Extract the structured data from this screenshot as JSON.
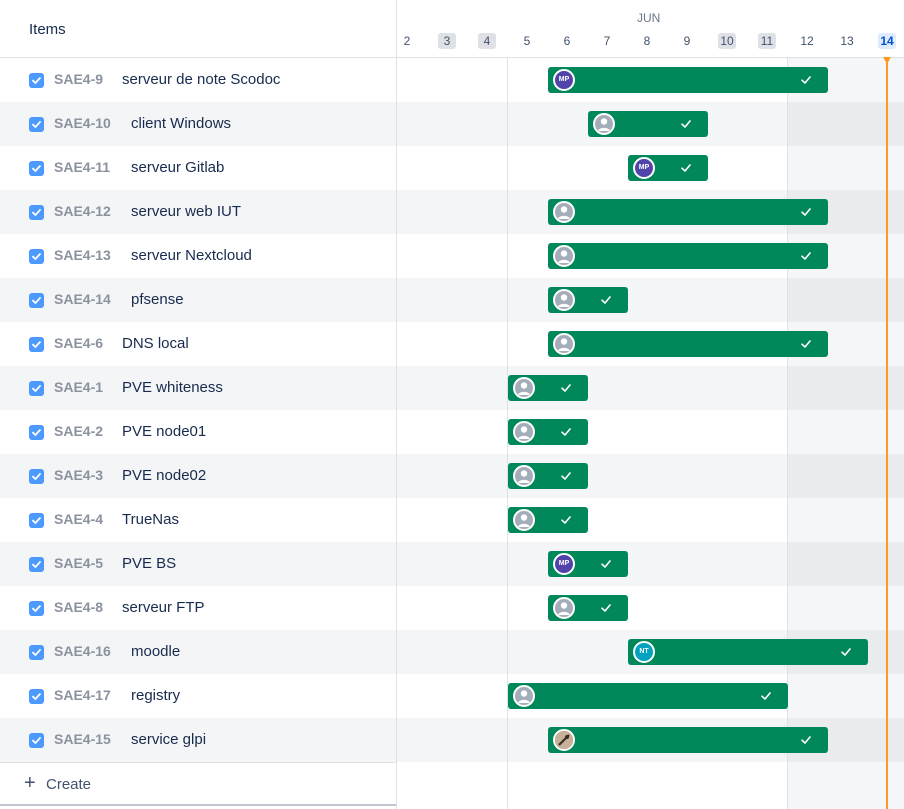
{
  "list": {
    "header": "Items",
    "create_label": "Create"
  },
  "timeline": {
    "month": "JUN",
    "days": [
      {
        "label": "2",
        "type": "normal"
      },
      {
        "label": "3",
        "type": "weekend"
      },
      {
        "label": "4",
        "type": "weekend"
      },
      {
        "label": "5",
        "type": "normal"
      },
      {
        "label": "6",
        "type": "normal"
      },
      {
        "label": "7",
        "type": "normal"
      },
      {
        "label": "8",
        "type": "normal"
      },
      {
        "label": "9",
        "type": "normal"
      },
      {
        "label": "10",
        "type": "weekend"
      },
      {
        "label": "11",
        "type": "weekend"
      },
      {
        "label": "12",
        "type": "normal"
      },
      {
        "label": "13",
        "type": "normal"
      },
      {
        "label": "14",
        "type": "today"
      }
    ],
    "today": "14"
  },
  "colors": {
    "bar": "#00875a",
    "today_line": "#ff991f",
    "checkbox": "#4c9aff"
  },
  "items": [
    {
      "key": "SAE4-9",
      "summary": "serveur de note Scodoc",
      "start": "6",
      "end": "12",
      "assignee": "MP",
      "avatar_color": "#5243aa"
    },
    {
      "key": "SAE4-10",
      "summary": "client Windows",
      "start": "7",
      "end": "9",
      "assignee": "",
      "avatar_color": ""
    },
    {
      "key": "SAE4-11",
      "summary": "serveur Gitlab",
      "start": "8",
      "end": "9",
      "assignee": "MP",
      "avatar_color": "#5243aa"
    },
    {
      "key": "SAE4-12",
      "summary": "serveur web IUT",
      "start": "6",
      "end": "12",
      "assignee": "",
      "avatar_color": ""
    },
    {
      "key": "SAE4-13",
      "summary": "serveur Nextcloud",
      "start": "6",
      "end": "12",
      "assignee": "",
      "avatar_color": ""
    },
    {
      "key": "SAE4-14",
      "summary": "pfsense",
      "start": "6",
      "end": "7",
      "assignee": "",
      "avatar_color": ""
    },
    {
      "key": "SAE4-6",
      "summary": "DNS local",
      "start": "6",
      "end": "12",
      "assignee": "",
      "avatar_color": ""
    },
    {
      "key": "SAE4-1",
      "summary": "PVE whiteness",
      "start": "5",
      "end": "6",
      "assignee": "",
      "avatar_color": ""
    },
    {
      "key": "SAE4-2",
      "summary": "PVE node01",
      "start": "5",
      "end": "6",
      "assignee": "",
      "avatar_color": ""
    },
    {
      "key": "SAE4-3",
      "summary": "PVE node02",
      "start": "5",
      "end": "6",
      "assignee": "",
      "avatar_color": ""
    },
    {
      "key": "SAE4-4",
      "summary": "TrueNas",
      "start": "5",
      "end": "6",
      "assignee": "",
      "avatar_color": ""
    },
    {
      "key": "SAE4-5",
      "summary": "PVE BS",
      "start": "6",
      "end": "7",
      "assignee": "MP",
      "avatar_color": "#5243aa"
    },
    {
      "key": "SAE4-8",
      "summary": "serveur FTP",
      "start": "6",
      "end": "7",
      "assignee": "",
      "avatar_color": ""
    },
    {
      "key": "SAE4-16",
      "summary": "moodle",
      "start": "8",
      "end": "13",
      "assignee": "NT",
      "avatar_color": "#00a3bf"
    },
    {
      "key": "SAE4-17",
      "summary": "registry",
      "start": "5",
      "end": "11",
      "assignee": "",
      "avatar_color": ""
    },
    {
      "key": "SAE4-15",
      "summary": "service glpi",
      "start": "6",
      "end": "12",
      "assignee": "photo",
      "avatar_color": "#8a6d4b"
    }
  ]
}
